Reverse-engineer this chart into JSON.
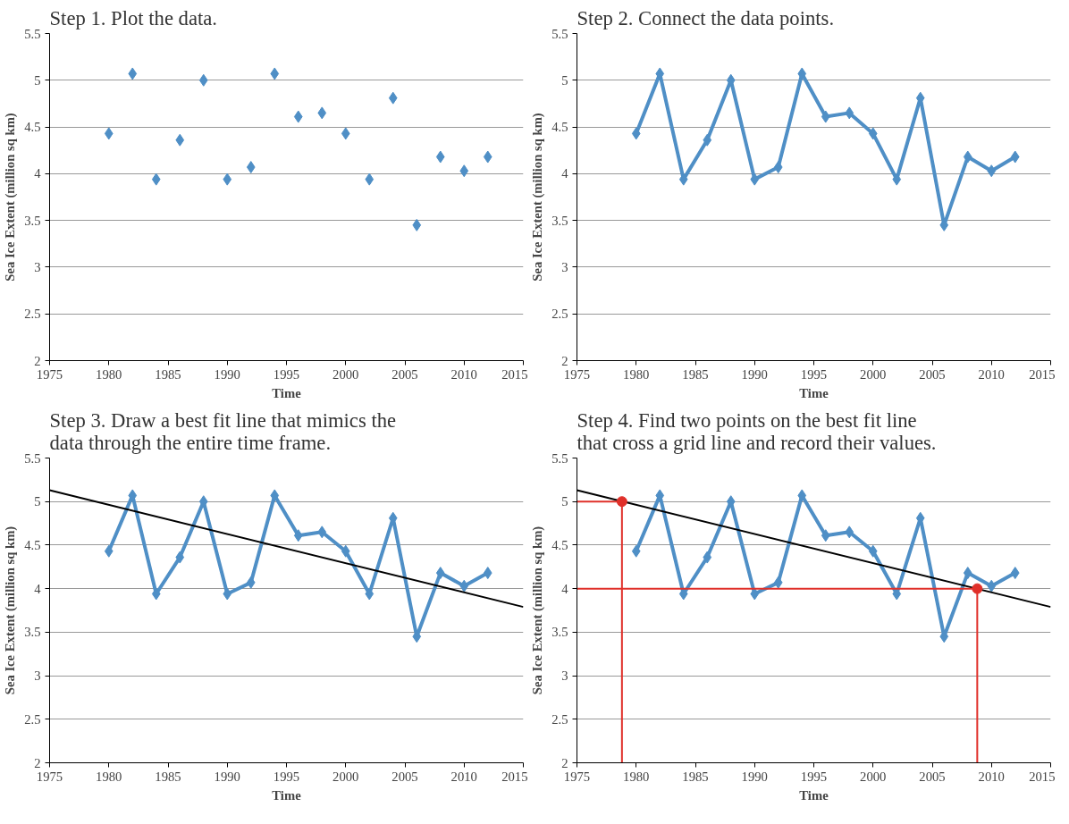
{
  "chart_data": [
    {
      "type": "scatter",
      "title": "Step 1. Plot the data.",
      "xlabel": "Time",
      "ylabel": "Sea Ice Extent (million sq km)",
      "xlim": [
        1975,
        2015
      ],
      "xticks": [
        1975,
        1980,
        1985,
        1990,
        1995,
        2000,
        2005,
        2010,
        2015
      ],
      "ylim": [
        2,
        5.5
      ],
      "yticks": [
        2,
        2.5,
        3,
        3.5,
        4,
        4.5,
        5,
        5.5
      ],
      "grid": "y",
      "marker": "diamond",
      "series": [
        {
          "color": "#4f8fc6",
          "x": [
            1980,
            1982,
            1984,
            1986,
            1988,
            1990,
            1992,
            1994,
            1996,
            1998,
            2000,
            2002,
            2004,
            2006,
            2008,
            2010,
            2012
          ],
          "values": [
            4.43,
            5.07,
            3.94,
            4.36,
            5.0,
            3.94,
            4.07,
            5.07,
            4.61,
            4.65,
            4.43,
            3.94,
            4.81,
            3.45,
            4.18,
            4.03,
            4.18
          ]
        }
      ]
    },
    {
      "type": "line",
      "title": "Step 2. Connect the data points.",
      "xlabel": "Time",
      "ylabel": "Sea Ice Extent (million sq km)",
      "xlim": [
        1975,
        2015
      ],
      "xticks": [
        1975,
        1980,
        1985,
        1990,
        1995,
        2000,
        2005,
        2010,
        2015
      ],
      "ylim": [
        2,
        5.5
      ],
      "yticks": [
        2,
        2.5,
        3,
        3.5,
        4,
        4.5,
        5,
        5.5
      ],
      "grid": "y",
      "marker": "diamond",
      "series": [
        {
          "color": "#4f8fc6",
          "x": [
            1980,
            1982,
            1984,
            1986,
            1988,
            1990,
            1992,
            1994,
            1996,
            1998,
            2000,
            2002,
            2004,
            2006,
            2008,
            2010,
            2012
          ],
          "values": [
            4.43,
            5.07,
            3.94,
            4.36,
            5.0,
            3.94,
            4.07,
            5.07,
            4.61,
            4.65,
            4.43,
            3.94,
            4.81,
            3.45,
            4.18,
            4.03,
            4.18
          ]
        }
      ]
    },
    {
      "type": "line",
      "title": "Step 3. Draw a best fit line that mimics the\ndata through the entire time frame.",
      "xlabel": "Time",
      "ylabel": "Sea Ice Extent (million sq km)",
      "xlim": [
        1975,
        2015
      ],
      "xticks": [
        1975,
        1980,
        1985,
        1990,
        1995,
        2000,
        2005,
        2010,
        2015
      ],
      "ylim": [
        2,
        5.5
      ],
      "yticks": [
        2,
        2.5,
        3,
        3.5,
        4,
        4.5,
        5,
        5.5
      ],
      "grid": "y",
      "marker": "diamond",
      "series": [
        {
          "color": "#4f8fc6",
          "x": [
            1980,
            1982,
            1984,
            1986,
            1988,
            1990,
            1992,
            1994,
            1996,
            1998,
            2000,
            2002,
            2004,
            2006,
            2008,
            2010,
            2012
          ],
          "values": [
            4.43,
            5.07,
            3.94,
            4.36,
            5.0,
            3.94,
            4.07,
            5.07,
            4.61,
            4.65,
            4.43,
            3.94,
            4.81,
            3.45,
            4.18,
            4.03,
            4.18
          ]
        },
        {
          "type": "line",
          "color": "#000000",
          "marker": "none",
          "x": [
            1975,
            2015
          ],
          "values": [
            5.13,
            3.79
          ]
        }
      ]
    },
    {
      "type": "line",
      "title": "Step 4. Find two points on the best fit line\nthat cross a grid line and record their values.",
      "xlabel": "Time",
      "ylabel": "Sea Ice Extent (million sq km)",
      "xlim": [
        1975,
        2015
      ],
      "xticks": [
        1975,
        1980,
        1985,
        1990,
        1995,
        2000,
        2005,
        2010,
        2015
      ],
      "ylim": [
        2,
        5.5
      ],
      "yticks": [
        2,
        2.5,
        3,
        3.5,
        4,
        4.5,
        5,
        5.5
      ],
      "grid": "y",
      "marker": "diamond",
      "series": [
        {
          "color": "#4f8fc6",
          "x": [
            1980,
            1982,
            1984,
            1986,
            1988,
            1990,
            1992,
            1994,
            1996,
            1998,
            2000,
            2002,
            2004,
            2006,
            2008,
            2010,
            2012
          ],
          "values": [
            4.43,
            5.07,
            3.94,
            4.36,
            5.0,
            3.94,
            4.07,
            5.07,
            4.61,
            4.65,
            4.43,
            3.94,
            4.81,
            3.45,
            4.18,
            4.03,
            4.18
          ]
        },
        {
          "type": "line",
          "color": "#000000",
          "marker": "none",
          "x": [
            1975,
            2015
          ],
          "values": [
            5.13,
            3.79
          ]
        },
        {
          "type": "line",
          "color": "#e0302a",
          "marker": "none",
          "x": [
            1975,
            1978.8,
            1978.8
          ],
          "values": [
            5.0,
            5.0,
            2.0
          ]
        },
        {
          "type": "line",
          "color": "#e0302a",
          "marker": "none",
          "x": [
            1975,
            2008.8,
            2008.8
          ],
          "values": [
            4.0,
            4.0,
            2.0
          ]
        },
        {
          "type": "scatter",
          "color": "#e0302a",
          "marker": "circle",
          "x": [
            1978.8,
            2008.8
          ],
          "values": [
            5.0,
            4.0
          ]
        }
      ]
    }
  ]
}
